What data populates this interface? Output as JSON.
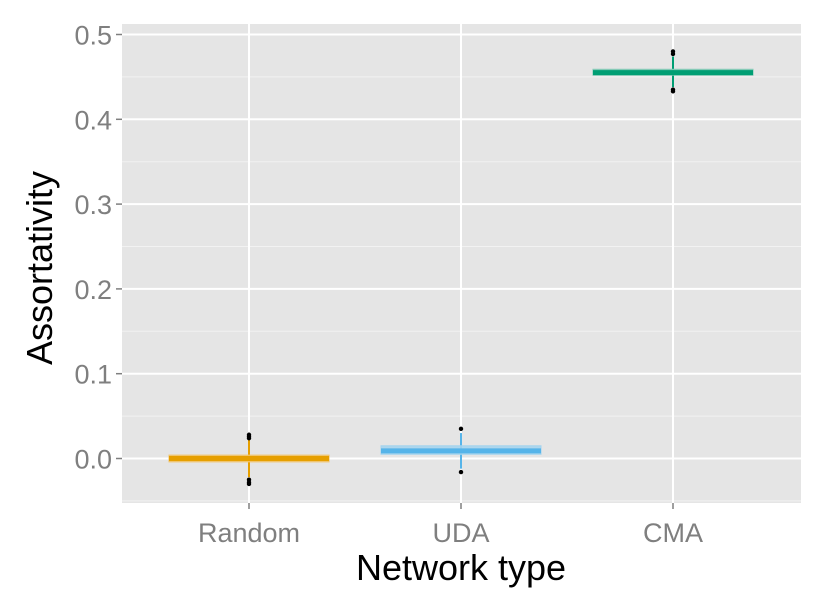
{
  "chart_data": {
    "type": "box",
    "xlabel": "Network type",
    "ylabel": "Assortativity",
    "categories": [
      "Random",
      "UDA",
      "CMA"
    ],
    "ylim": [
      -0.052,
      0.5
    ],
    "yticks": [
      0.0,
      0.1,
      0.2,
      0.3,
      0.4,
      0.5
    ],
    "ytick_labels": [
      "0.0",
      "0.1",
      "0.2",
      "0.3",
      "0.4",
      "0.5"
    ],
    "grid": true,
    "panel_background": "#e5e5e5",
    "boxes": [
      {
        "category": "Random",
        "whisker_low": -0.022,
        "q1": -0.004,
        "median": 0.0,
        "q3": 0.004,
        "whisker_high": 0.022,
        "outliers": [
          0.028,
          0.026,
          0.024,
          -0.025,
          -0.028,
          -0.03
        ],
        "color": "#e69f00",
        "fill": "#f0c36a"
      },
      {
        "category": "UDA",
        "whisker_low": -0.012,
        "q1": 0.005,
        "median": 0.009,
        "q3": 0.015,
        "whisker_high": 0.03,
        "outliers": [
          0.035,
          -0.016
        ],
        "color": "#56b4e9",
        "fill": "#a3d3ee"
      },
      {
        "category": "CMA",
        "whisker_low": 0.438,
        "q1": 0.452,
        "median": 0.455,
        "q3": 0.459,
        "whisker_high": 0.474,
        "outliers": [
          0.48,
          0.477,
          0.435,
          0.433
        ],
        "color": "#009e73",
        "fill": "#80c9b5"
      }
    ]
  }
}
